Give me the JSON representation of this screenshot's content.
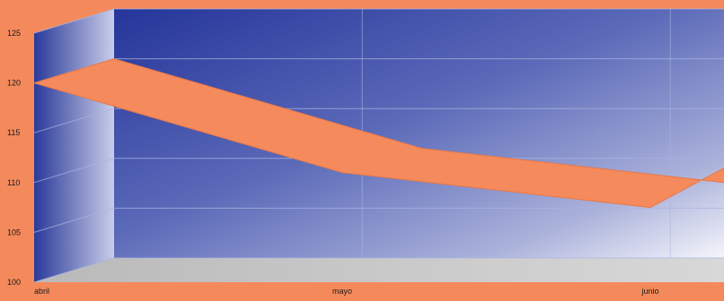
{
  "chart_data": {
    "type": "area",
    "style": "3d-ribbon",
    "categories": [
      "abril",
      "mayo",
      "junio"
    ],
    "series": [
      {
        "values": [
          120,
          111,
          107.5
        ]
      }
    ],
    "yticks": [
      100,
      105,
      110,
      115,
      120,
      125
    ],
    "ylim": [
      100,
      125
    ],
    "title": "",
    "xlabel": "",
    "ylabel": "",
    "grid": true,
    "colors": {
      "background": "#f48a5c",
      "ribbon": "#f58a5c",
      "ribbon_edge": "#e87848",
      "wall_dark": "#2a3a9a",
      "wall_light": "#ffffff",
      "floor": "#c8c8c8",
      "grid": "#aab4e0",
      "text": "#1a1a1a"
    }
  }
}
